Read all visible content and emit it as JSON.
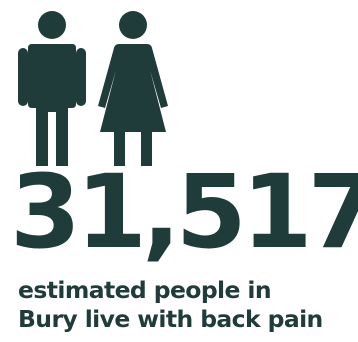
{
  "figure": {
    "icons": [
      "man-icon",
      "woman-icon"
    ],
    "number": "31,517",
    "caption_line1": "estimated people in",
    "caption_line2": "Bury live with back pain",
    "color": "#1f3b3a"
  }
}
